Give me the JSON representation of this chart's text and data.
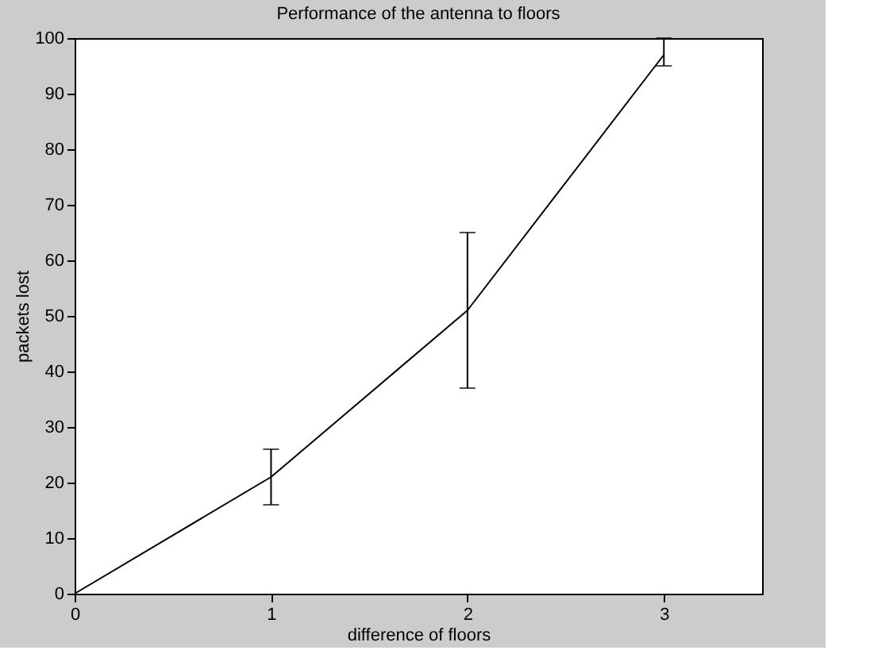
{
  "chart_data": {
    "type": "line",
    "title": "Performance of the antenna to floors",
    "xlabel": "difference of floors",
    "ylabel": "packets lost",
    "x": [
      0,
      1,
      2,
      3
    ],
    "series": [
      {
        "color": "#000000",
        "values": [
          0,
          21,
          51,
          97
        ],
        "errors": [
          null,
          [
            16,
            26
          ],
          [
            37,
            65
          ],
          [
            95,
            100
          ]
        ]
      }
    ],
    "xlim": [
      0,
      3.5
    ],
    "ylim": [
      0,
      100
    ],
    "xticks": [
      0,
      1,
      2,
      3
    ],
    "yticks": [
      0,
      10,
      20,
      30,
      40,
      50,
      60,
      70,
      80,
      90,
      100
    ],
    "marker": "none",
    "line_style": "solid"
  }
}
